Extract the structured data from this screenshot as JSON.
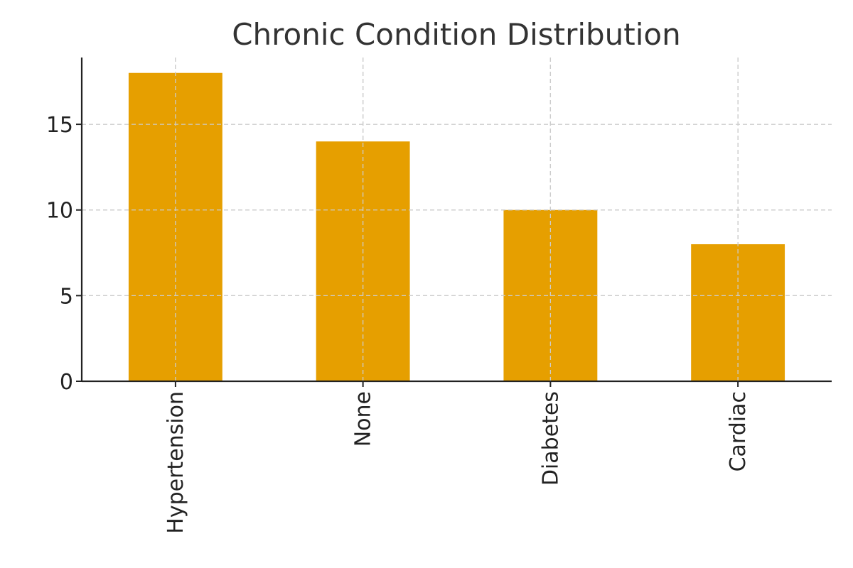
{
  "chart_data": {
    "type": "bar",
    "title": "Chronic Condition Distribution",
    "xlabel": "",
    "ylabel": "",
    "categories": [
      "Hypertension",
      "None",
      "Diabetes",
      "Cardiac"
    ],
    "values": [
      18,
      14,
      10,
      8
    ],
    "ylim": [
      0,
      18.9
    ],
    "yticks": [
      0,
      5,
      10,
      15
    ],
    "grid": true,
    "bar_color": "#E69F00"
  }
}
